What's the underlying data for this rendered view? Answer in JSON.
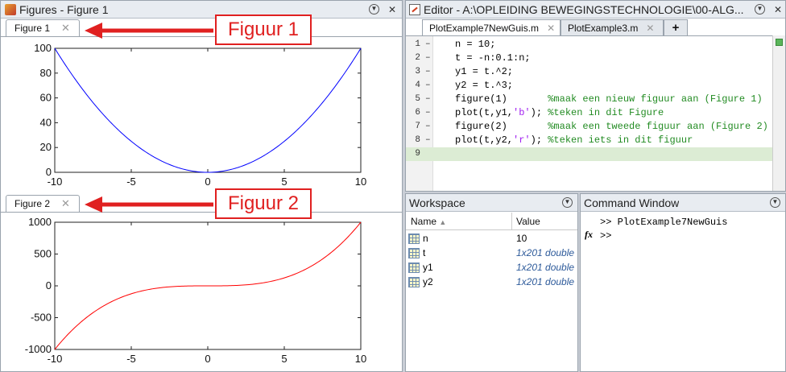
{
  "figures_window": {
    "title": "Figures - Figure 1",
    "tabs": [
      {
        "label": "Figure 1",
        "close": "✕"
      },
      {
        "label": "Figure 2",
        "close": "✕"
      }
    ],
    "callouts": [
      "Figuur 1",
      "Figuur 2"
    ]
  },
  "plots": [
    {
      "type": "line",
      "color": "#0000ff",
      "x_ticks": [
        "-10",
        "-5",
        "0",
        "5",
        "10"
      ],
      "y_ticks": [
        "0",
        "20",
        "40",
        "60",
        "80",
        "100"
      ],
      "xlim": [
        -10,
        10
      ],
      "ylim": [
        0,
        100
      ],
      "function": "t^2"
    },
    {
      "type": "line",
      "color": "#ff0000",
      "x_ticks": [
        "-10",
        "-5",
        "0",
        "5",
        "10"
      ],
      "y_ticks": [
        "-1000",
        "-500",
        "0",
        "500",
        "1000"
      ],
      "xlim": [
        -10,
        10
      ],
      "ylim": [
        -1000,
        1000
      ],
      "function": "t^3"
    }
  ],
  "chart_data": [
    {
      "type": "line",
      "x": [
        -10,
        -5,
        0,
        5,
        10
      ],
      "series": [
        {
          "values": [
            100,
            25,
            0,
            25,
            100
          ]
        }
      ],
      "ylim": [
        0,
        100
      ],
      "xlim": [
        -10,
        10
      ]
    },
    {
      "type": "line",
      "x": [
        -10,
        -5,
        0,
        5,
        10
      ],
      "series": [
        {
          "values": [
            -1000,
            -125,
            0,
            125,
            1000
          ]
        }
      ],
      "ylim": [
        -1000,
        1000
      ],
      "xlim": [
        -10,
        10
      ]
    }
  ],
  "editor": {
    "title": "Editor - A:\\OPLEIDING BEWEGINGSTECHNOLOGIE\\00-ALG...",
    "tabs": [
      {
        "label": "PlotExample7NewGuis.m",
        "close": "✕"
      },
      {
        "label": "PlotExample3.m",
        "close": "✕"
      }
    ],
    "new_tab": "+",
    "lines": [
      {
        "num": "1",
        "dash": "–",
        "code": "n = 10;",
        "str": "",
        "post": "",
        "comment": ""
      },
      {
        "num": "2",
        "dash": "–",
        "code": "t = -n:0.1:n;",
        "str": "",
        "post": "",
        "comment": ""
      },
      {
        "num": "3",
        "dash": "–",
        "code": "y1 = t.^2;",
        "str": "",
        "post": "",
        "comment": ""
      },
      {
        "num": "4",
        "dash": "–",
        "code": "y2 = t.^3;",
        "str": "",
        "post": "",
        "comment": ""
      },
      {
        "num": "5",
        "dash": "–",
        "code": "figure(1)       ",
        "str": "",
        "post": "",
        "comment": "%maak een nieuw figuur aan (Figure 1)"
      },
      {
        "num": "6",
        "dash": "–",
        "code": "plot(t,y1,",
        "str": "'b'",
        "post": "); ",
        "comment": "%teken in dit Figure"
      },
      {
        "num": "7",
        "dash": "–",
        "code": "figure(2)       ",
        "str": "",
        "post": "",
        "comment": "%maak een tweede figuur aan (Figure 2)"
      },
      {
        "num": "8",
        "dash": "–",
        "code": "plot(t,y2,",
        "str": "'r'",
        "post": "); ",
        "comment": "%teken iets in dit figuur"
      },
      {
        "num": "9",
        "dash": "",
        "code": "",
        "str": "",
        "post": "",
        "comment": ""
      }
    ]
  },
  "workspace": {
    "title": "Workspace",
    "col_name": "Name",
    "col_value": "Value",
    "vars": [
      {
        "name": "n",
        "value": "10",
        "dim": false
      },
      {
        "name": "t",
        "value": "1x201 double",
        "dim": true
      },
      {
        "name": "y1",
        "value": "1x201 double",
        "dim": true
      },
      {
        "name": "y2",
        "value": "1x201 double",
        "dim": true
      }
    ]
  },
  "command_window": {
    "title": "Command Window",
    "lines": [
      ">> PlotExample7NewGuis",
      ">>"
    ],
    "fx": "fx"
  }
}
